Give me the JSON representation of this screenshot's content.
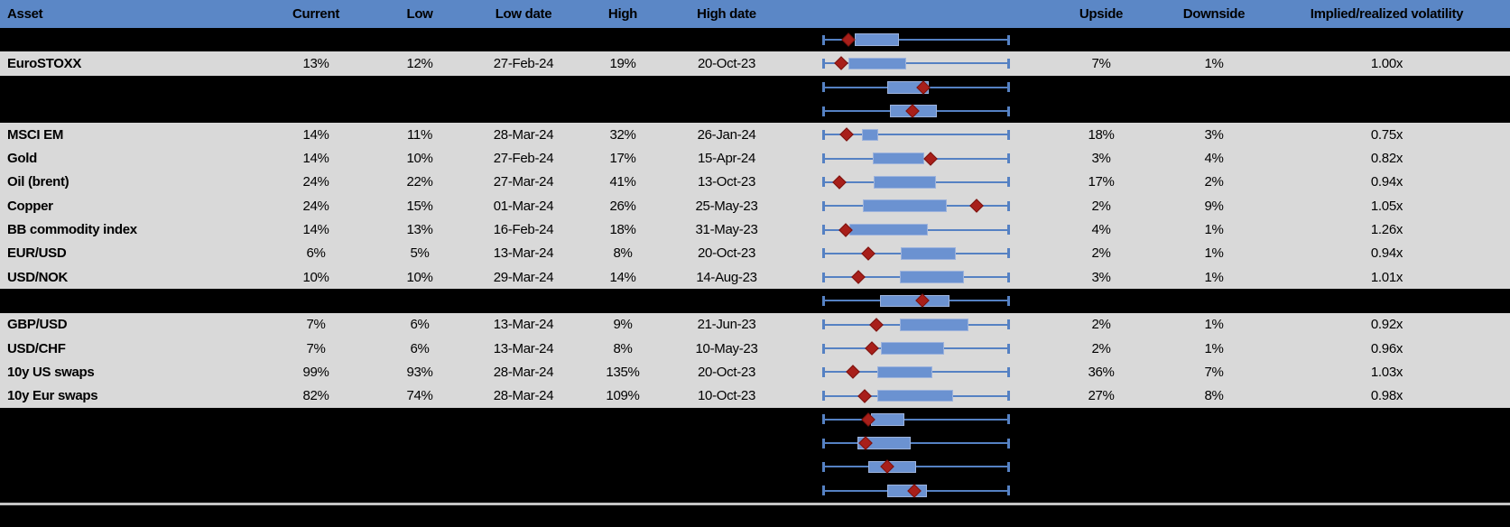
{
  "columns": [
    "Asset",
    "Current",
    "Low",
    "Low date",
    "High",
    "High date",
    "",
    "Upside",
    "Downside",
    "Implied/realized volatility"
  ],
  "colors": {
    "header_bg": "#5b87c6",
    "row_bg": "#d9d9d9",
    "hidden_row_bg": "#000000",
    "box_fill": "#6b92d1",
    "box_border": "#9db3dc",
    "whisker": "#5581c3",
    "marker_fill": "#a81f1a",
    "marker_border": "#7a120e",
    "divider": "#c4c4c4"
  },
  "rows": [
    {
      "type": "hidden",
      "box": {
        "lo": 0.17,
        "hi": 0.41,
        "d": 0.135
      }
    },
    {
      "type": "data",
      "asset": "EuroSTOXX",
      "current": "13%",
      "low": "12%",
      "low_date": "27-Feb-24",
      "high": "19%",
      "high_date": "20-Oct-23",
      "upside": "7%",
      "downside": "1%",
      "iv_rv": "1.00x",
      "box": {
        "lo": 0.138,
        "hi": 0.445,
        "d": 0.098
      }
    },
    {
      "type": "hidden",
      "box": {
        "lo": 0.346,
        "hi": 0.57,
        "d": 0.537
      }
    },
    {
      "type": "hidden",
      "box": {
        "lo": 0.357,
        "hi": 0.61,
        "d": 0.479
      }
    },
    {
      "type": "data",
      "asset": "MSCI EM",
      "current": "14%",
      "low": "11%",
      "low_date": "28-Mar-24",
      "high": "32%",
      "high_date": "26-Jan-24",
      "upside": "18%",
      "downside": "3%",
      "iv_rv": "0.75x",
      "box": {
        "lo": 0.208,
        "hi": 0.294,
        "d": 0.124
      }
    },
    {
      "type": "data",
      "asset": "Gold",
      "current": "14%",
      "low": "10%",
      "low_date": "27-Feb-24",
      "high": "17%",
      "high_date": "15-Apr-24",
      "upside": "3%",
      "downside": "4%",
      "iv_rv": "0.82x",
      "box": {
        "lo": 0.265,
        "hi": 0.542,
        "d": 0.576
      }
    },
    {
      "type": "data",
      "asset": "Oil (brent)",
      "current": "24%",
      "low": "22%",
      "low_date": "27-Mar-24",
      "high": "41%",
      "high_date": "13-Oct-23",
      "upside": "17%",
      "downside": "2%",
      "iv_rv": "0.94x",
      "box": {
        "lo": 0.27,
        "hi": 0.605,
        "d": 0.086
      }
    },
    {
      "type": "data",
      "asset": "Copper",
      "current": "24%",
      "low": "15%",
      "low_date": "01-Mar-24",
      "high": "26%",
      "high_date": "25-May-23",
      "upside": "2%",
      "downside": "9%",
      "iv_rv": "1.05x",
      "box": {
        "lo": 0.216,
        "hi": 0.667,
        "d": 0.824
      }
    },
    {
      "type": "data",
      "asset": "BB commodity index",
      "current": "14%",
      "low": "13%",
      "low_date": "16-Feb-24",
      "high": "18%",
      "high_date": "31-May-23",
      "upside": "4%",
      "downside": "1%",
      "iv_rv": "1.26x",
      "box": {
        "lo": 0.143,
        "hi": 0.562,
        "d": 0.122
      }
    },
    {
      "type": "data",
      "asset": "EUR/USD",
      "current": "6%",
      "low": "5%",
      "low_date": "13-Mar-24",
      "high": "8%",
      "high_date": "20-Oct-23",
      "upside": "2%",
      "downside": "1%",
      "iv_rv": "0.94x",
      "box": {
        "lo": 0.419,
        "hi": 0.716,
        "d": 0.245
      }
    },
    {
      "type": "data",
      "asset": "USD/NOK",
      "current": "10%",
      "low": "10%",
      "low_date": "29-Mar-24",
      "high": "14%",
      "high_date": "14-Aug-23",
      "upside": "3%",
      "downside": "1%",
      "iv_rv": "1.01x",
      "box": {
        "lo": 0.415,
        "hi": 0.759,
        "d": 0.191
      }
    },
    {
      "type": "hidden",
      "box": {
        "lo": 0.305,
        "hi": 0.679,
        "d": 0.532
      }
    },
    {
      "type": "data",
      "asset": "GBP/USD",
      "current": "7%",
      "low": "6%",
      "low_date": "13-Mar-24",
      "high": "9%",
      "high_date": "21-Jun-23",
      "upside": "2%",
      "downside": "1%",
      "iv_rv": "0.92x",
      "box": {
        "lo": 0.411,
        "hi": 0.784,
        "d": 0.284
      }
    },
    {
      "type": "data",
      "asset": "USD/CHF",
      "current": "7%",
      "low": "6%",
      "low_date": "13-Mar-24",
      "high": "8%",
      "high_date": "10-May-23",
      "upside": "2%",
      "downside": "1%",
      "iv_rv": "0.96x",
      "box": {
        "lo": 0.31,
        "hi": 0.651,
        "d": 0.261
      }
    },
    {
      "type": "data",
      "asset": "10y US swaps",
      "current": "99%",
      "low": "93%",
      "low_date": "28-Mar-24",
      "high": "135%",
      "high_date": "20-Oct-23",
      "upside": "36%",
      "downside": "7%",
      "iv_rv": "1.03x",
      "box": {
        "lo": 0.289,
        "hi": 0.586,
        "d": 0.159
      }
    },
    {
      "type": "data",
      "asset": "10y Eur swaps",
      "current": "82%",
      "low": "74%",
      "low_date": "28-Mar-24",
      "high": "109%",
      "high_date": "10-Oct-23",
      "upside": "27%",
      "downside": "8%",
      "iv_rv": "0.98x",
      "box": {
        "lo": 0.289,
        "hi": 0.698,
        "d": 0.221
      }
    },
    {
      "type": "hidden",
      "box": {
        "lo": 0.257,
        "hi": 0.435,
        "d": 0.243
      }
    },
    {
      "type": "hidden",
      "box": {
        "lo": 0.183,
        "hi": 0.471,
        "d": 0.227
      }
    },
    {
      "type": "hidden",
      "box": {
        "lo": 0.245,
        "hi": 0.5,
        "d": 0.346
      }
    },
    {
      "type": "hidden",
      "box": {
        "lo": 0.346,
        "hi": 0.557,
        "d": 0.492
      }
    }
  ],
  "chart_data": {
    "type": "table",
    "columns": [
      "Asset",
      "Current",
      "Low",
      "Low date",
      "High",
      "High date",
      "Upside",
      "Downside",
      "Implied/realized volatility"
    ],
    "rows": [
      [
        "EuroSTOXX",
        "13%",
        "12%",
        "27-Feb-24",
        "19%",
        "20-Oct-23",
        "7%",
        "1%",
        "1.00x"
      ],
      [
        "MSCI EM",
        "14%",
        "11%",
        "28-Mar-24",
        "32%",
        "26-Jan-24",
        "18%",
        "3%",
        "0.75x"
      ],
      [
        "Gold",
        "14%",
        "10%",
        "27-Feb-24",
        "17%",
        "15-Apr-24",
        "3%",
        "4%",
        "0.82x"
      ],
      [
        "Oil (brent)",
        "24%",
        "22%",
        "27-Mar-24",
        "41%",
        "13-Oct-23",
        "17%",
        "2%",
        "0.94x"
      ],
      [
        "Copper",
        "24%",
        "15%",
        "01-Mar-24",
        "26%",
        "25-May-23",
        "2%",
        "9%",
        "1.05x"
      ],
      [
        "BB commodity index",
        "14%",
        "13%",
        "16-Feb-24",
        "18%",
        "31-May-23",
        "4%",
        "1%",
        "1.26x"
      ],
      [
        "EUR/USD",
        "6%",
        "5%",
        "13-Mar-24",
        "8%",
        "20-Oct-23",
        "2%",
        "1%",
        "0.94x"
      ],
      [
        "USD/NOK",
        "10%",
        "10%",
        "29-Mar-24",
        "14%",
        "14-Aug-23",
        "3%",
        "1%",
        "1.01x"
      ],
      [
        "GBP/USD",
        "7%",
        "6%",
        "13-Mar-24",
        "9%",
        "21-Jun-23",
        "2%",
        "1%",
        "0.92x"
      ],
      [
        "USD/CHF",
        "7%",
        "6%",
        "13-Mar-24",
        "8%",
        "10-May-23",
        "2%",
        "1%",
        "0.96x"
      ],
      [
        "10y US swaps",
        "99%",
        "93%",
        "28-Mar-24",
        "135%",
        "20-Oct-23",
        "36%",
        "7%",
        "1.03x"
      ],
      [
        "10y Eur swaps",
        "82%",
        "74%",
        "28-Mar-24",
        "109%",
        "10-Oct-23",
        "27%",
        "8%",
        "0.98x"
      ]
    ],
    "box_plot_column": {
      "note": "Each of the 20 table rows (including blacked-out rows) shows a horizontal range plot: full-width min-max whisker with end caps, a blue box, and a red diamond marker. Positions given as fractions 0-1 of the whisker span; the axis is unlabeled.",
      "series": [
        {
          "row": 0,
          "asset": "(hidden)",
          "box": [
            0.17,
            0.41
          ],
          "marker": 0.135
        },
        {
          "row": 1,
          "asset": "EuroSTOXX",
          "box": [
            0.138,
            0.445
          ],
          "marker": 0.098
        },
        {
          "row": 2,
          "asset": "(hidden)",
          "box": [
            0.346,
            0.57
          ],
          "marker": 0.537
        },
        {
          "row": 3,
          "asset": "(hidden)",
          "box": [
            0.357,
            0.61
          ],
          "marker": 0.479
        },
        {
          "row": 4,
          "asset": "MSCI EM",
          "box": [
            0.208,
            0.294
          ],
          "marker": 0.124
        },
        {
          "row": 5,
          "asset": "Gold",
          "box": [
            0.265,
            0.542
          ],
          "marker": 0.576
        },
        {
          "row": 6,
          "asset": "Oil (brent)",
          "box": [
            0.27,
            0.605
          ],
          "marker": 0.086
        },
        {
          "row": 7,
          "asset": "Copper",
          "box": [
            0.216,
            0.667
          ],
          "marker": 0.824
        },
        {
          "row": 8,
          "asset": "BB commodity index",
          "box": [
            0.143,
            0.562
          ],
          "marker": 0.122
        },
        {
          "row": 9,
          "asset": "EUR/USD",
          "box": [
            0.419,
            0.716
          ],
          "marker": 0.245
        },
        {
          "row": 10,
          "asset": "USD/NOK",
          "box": [
            0.415,
            0.759
          ],
          "marker": 0.191
        },
        {
          "row": 11,
          "asset": "(hidden)",
          "box": [
            0.305,
            0.679
          ],
          "marker": 0.532
        },
        {
          "row": 12,
          "asset": "GBP/USD",
          "box": [
            0.411,
            0.784
          ],
          "marker": 0.284
        },
        {
          "row": 13,
          "asset": "USD/CHF",
          "box": [
            0.31,
            0.651
          ],
          "marker": 0.261
        },
        {
          "row": 14,
          "asset": "10y US swaps",
          "box": [
            0.289,
            0.586
          ],
          "marker": 0.159
        },
        {
          "row": 15,
          "asset": "10y Eur swaps",
          "box": [
            0.289,
            0.698
          ],
          "marker": 0.221
        },
        {
          "row": 16,
          "asset": "(hidden)",
          "box": [
            0.257,
            0.435
          ],
          "marker": 0.243
        },
        {
          "row": 17,
          "asset": "(hidden)",
          "box": [
            0.183,
            0.471
          ],
          "marker": 0.227
        },
        {
          "row": 18,
          "asset": "(hidden)",
          "box": [
            0.245,
            0.5
          ],
          "marker": 0.346
        },
        {
          "row": 19,
          "asset": "(hidden)",
          "box": [
            0.346,
            0.557
          ],
          "marker": 0.492
        }
      ]
    }
  }
}
